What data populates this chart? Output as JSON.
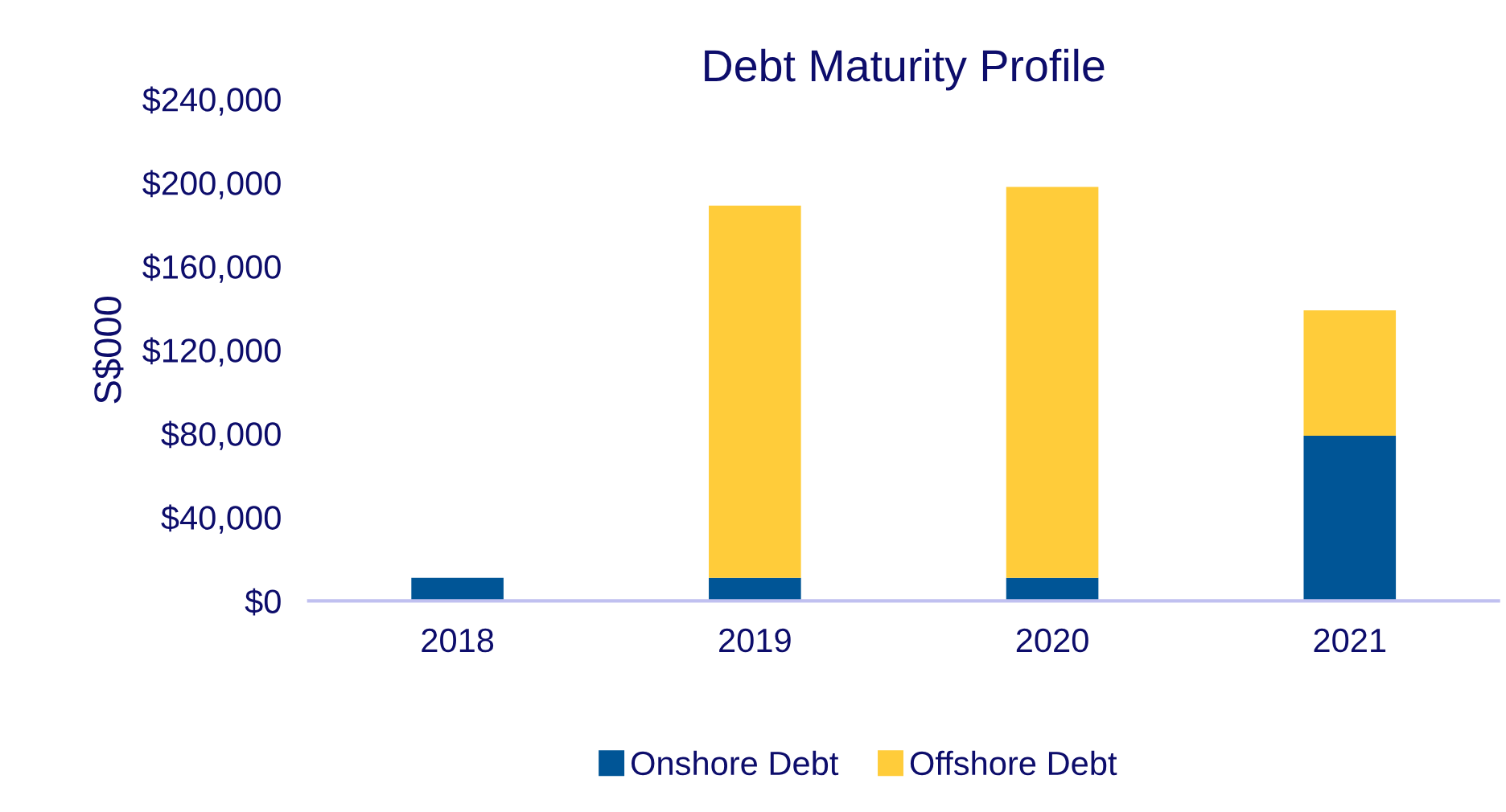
{
  "chart_data": {
    "type": "bar",
    "title": "Debt Maturity Profile",
    "ylabel": "S$000",
    "categories": [
      "2018",
      "2019",
      "2020",
      "2021"
    ],
    "series": [
      {
        "name": "Onshore Debt",
        "color": "#005596",
        "values": [
          11000,
          11000,
          11000,
          79000
        ]
      },
      {
        "name": "Offshore Debt",
        "color": "#ffcc3a",
        "values": [
          null,
          178000,
          187000,
          60000
        ]
      }
    ],
    "stacked": true,
    "ylim": [
      0,
      240000
    ],
    "yticks": [
      {
        "value": 0,
        "label": "$0"
      },
      {
        "value": 40000,
        "label": "$40,000"
      },
      {
        "value": 80000,
        "label": "$80,000"
      },
      {
        "value": 120000,
        "label": "$120,000"
      },
      {
        "value": 160000,
        "label": "$160,000"
      },
      {
        "value": 200000,
        "label": "$200,000"
      },
      {
        "value": 240000,
        "label": "$240,000"
      }
    ],
    "grid": false,
    "legend": "bottom"
  }
}
